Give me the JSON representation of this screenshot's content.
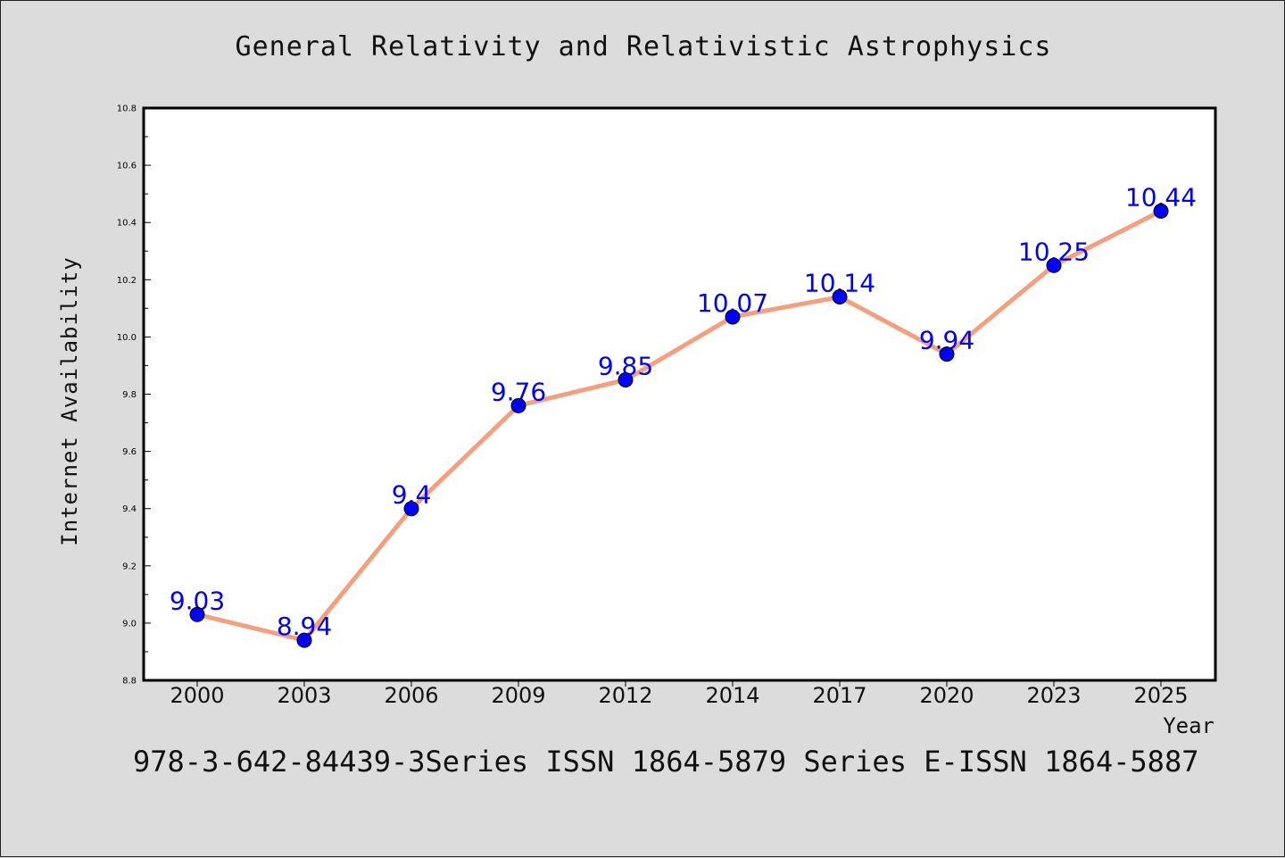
{
  "chart_data": {
    "type": "line",
    "title": "General Relativity and Relativistic Astrophysics",
    "xlabel": "Year",
    "ylabel": "Internet Availability",
    "categories": [
      "2000",
      "2003",
      "2006",
      "2009",
      "2012",
      "2014",
      "2017",
      "2020",
      "2023",
      "2025"
    ],
    "values": [
      9.03,
      8.94,
      9.4,
      9.76,
      9.85,
      10.07,
      10.14,
      9.94,
      10.25,
      10.44
    ],
    "data_labels": [
      "9.03",
      "8.94",
      "9.4",
      "9.76",
      "9.85",
      "10.07",
      "10.14",
      "9.94",
      "10.25",
      "10.44"
    ],
    "ylim": [
      8.8,
      10.8
    ],
    "yticks": [
      "8.8",
      "9.0",
      "9.2",
      "9.4",
      "9.6",
      "9.8",
      "10.0",
      "10.2",
      "10.4",
      "10.6",
      "10.8"
    ],
    "grid": false,
    "legend": "none",
    "colors": {
      "line": "#f4a07f",
      "marker": "#0000ff",
      "label": "#0000ff",
      "background": "#dcdcdc",
      "plot_background": "#ffffff"
    }
  },
  "footer": "978-3-642-84439-3Series ISSN 1864-5879 Series E-ISSN 1864-5887"
}
